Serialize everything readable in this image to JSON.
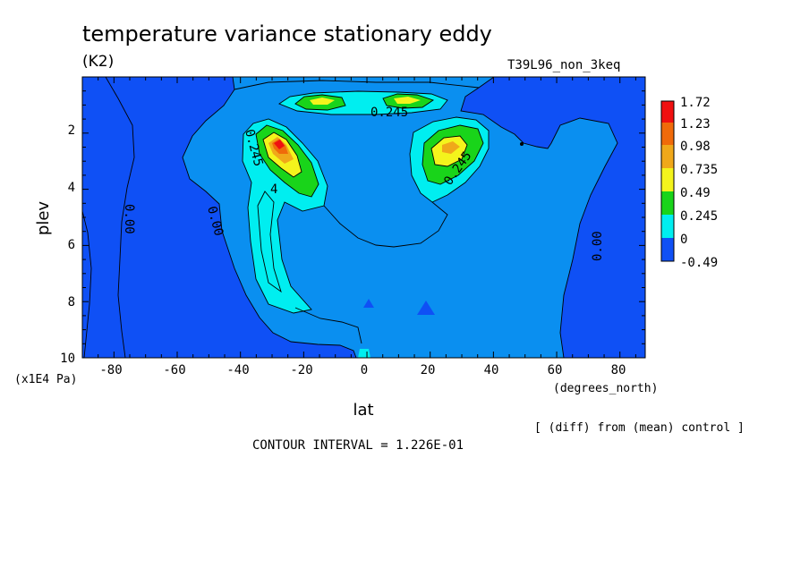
{
  "title": "temperature variance stationary eddy",
  "units": "(K2)",
  "experiment": "T39L96_non_3keq",
  "xlabel": "lat",
  "xunits": "(degrees_north)",
  "ylabel": "plev",
  "yunits": "(x1E4 Pa)",
  "diff_note": "[ (diff) from (mean) control ]",
  "contour_interval": "CONTOUR INTERVAL = 1.226E-01",
  "colors": {
    "lvl_m049": "#0f50f5",
    "lvl_0": "#0a8ff0",
    "lvl_0245": "#00eef0",
    "lvl_049": "#19d41a",
    "lvl_0735": "#f4f41c",
    "lvl_098": "#f0a81a",
    "lvl_123": "#f06a0a",
    "lvl_172": "#f01010"
  },
  "chart_data": {
    "type": "heatmap",
    "title": "temperature variance stationary eddy",
    "xlabel": "lat",
    "ylabel": "plev",
    "xlim": [
      -90,
      88
    ],
    "ylim": [
      10,
      0
    ],
    "xticks": [
      "-80",
      "-60",
      "-40",
      "-20",
      "0",
      "20",
      "40",
      "60",
      "80"
    ],
    "yticks": [
      "2",
      "4",
      "6",
      "8",
      "10"
    ],
    "colorbar_levels": [
      "1.72",
      "1.23",
      "0.98",
      "0.735",
      "0.49",
      "0.245",
      "0",
      "-0.49"
    ],
    "contour_labels": [
      "0.00",
      "0.00",
      "0.00",
      "0.245",
      "0.245",
      "0.245",
      "4"
    ],
    "features": [
      {
        "name": "SH upper maximum",
        "lat": -26,
        "plev": 2.6,
        "value": 1.72
      },
      {
        "name": "NH upper maximum",
        "lat": 28,
        "plev": 2.6,
        "value": 0.98
      },
      {
        "name": "equatorial band",
        "lat": 0,
        "plev": 0.9,
        "value": 0.735
      }
    ]
  }
}
